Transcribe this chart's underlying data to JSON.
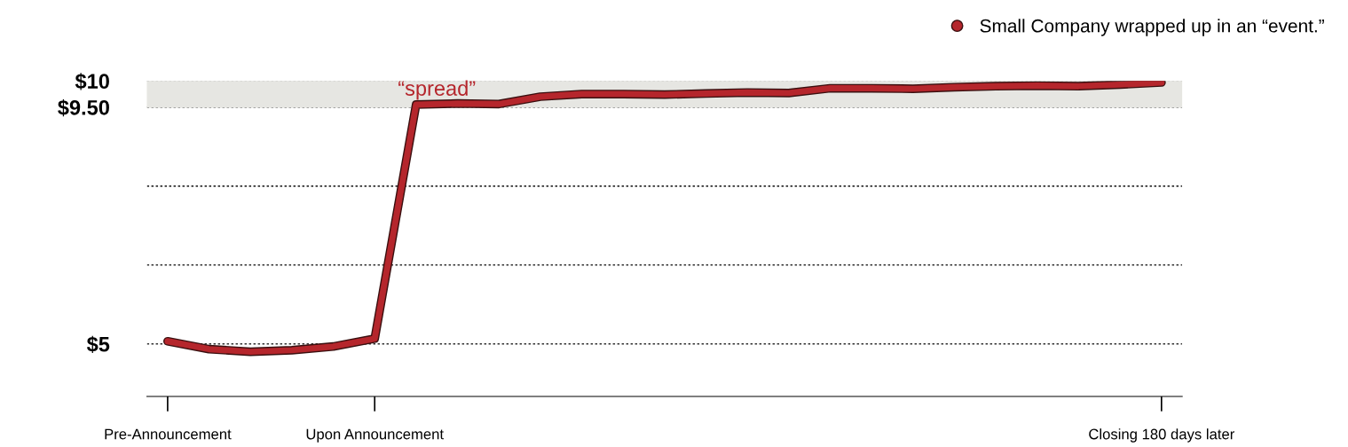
{
  "chart_data": {
    "type": "line",
    "categories": [
      "Pre-Announcement",
      null,
      null,
      null,
      null,
      "Upon Announcement",
      null,
      null,
      null,
      null,
      null,
      null,
      null,
      null,
      null,
      null,
      null,
      null,
      null,
      null,
      null,
      null,
      null,
      null,
      "Closing 180 days later"
    ],
    "series": [
      {
        "name": "Small Company wrapped up in an “event.”",
        "color": "#b5262c",
        "values": [
          5.05,
          4.9,
          4.85,
          4.88,
          4.95,
          5.1,
          9.55,
          9.57,
          9.56,
          9.7,
          9.75,
          9.75,
          9.74,
          9.76,
          9.78,
          9.77,
          9.86,
          9.86,
          9.85,
          9.88,
          9.9,
          9.91,
          9.9,
          9.93,
          9.97
        ]
      }
    ],
    "ylim": [
      4,
      10
    ],
    "yticks": [
      {
        "value": 5,
        "label": "$5"
      },
      {
        "value": 6.5,
        "label": null
      },
      {
        "value": 8,
        "label": null
      },
      {
        "value": 9.5,
        "label": "$9.50"
      },
      {
        "value": 10,
        "label": "$10"
      }
    ],
    "bands": [
      {
        "axis": "y",
        "from": 9.5,
        "to": 10,
        "label": "“spread”",
        "color": "#e6e6e2"
      }
    ],
    "grid": "y",
    "legend": "top right",
    "marker": "none",
    "line_style": "solid"
  }
}
